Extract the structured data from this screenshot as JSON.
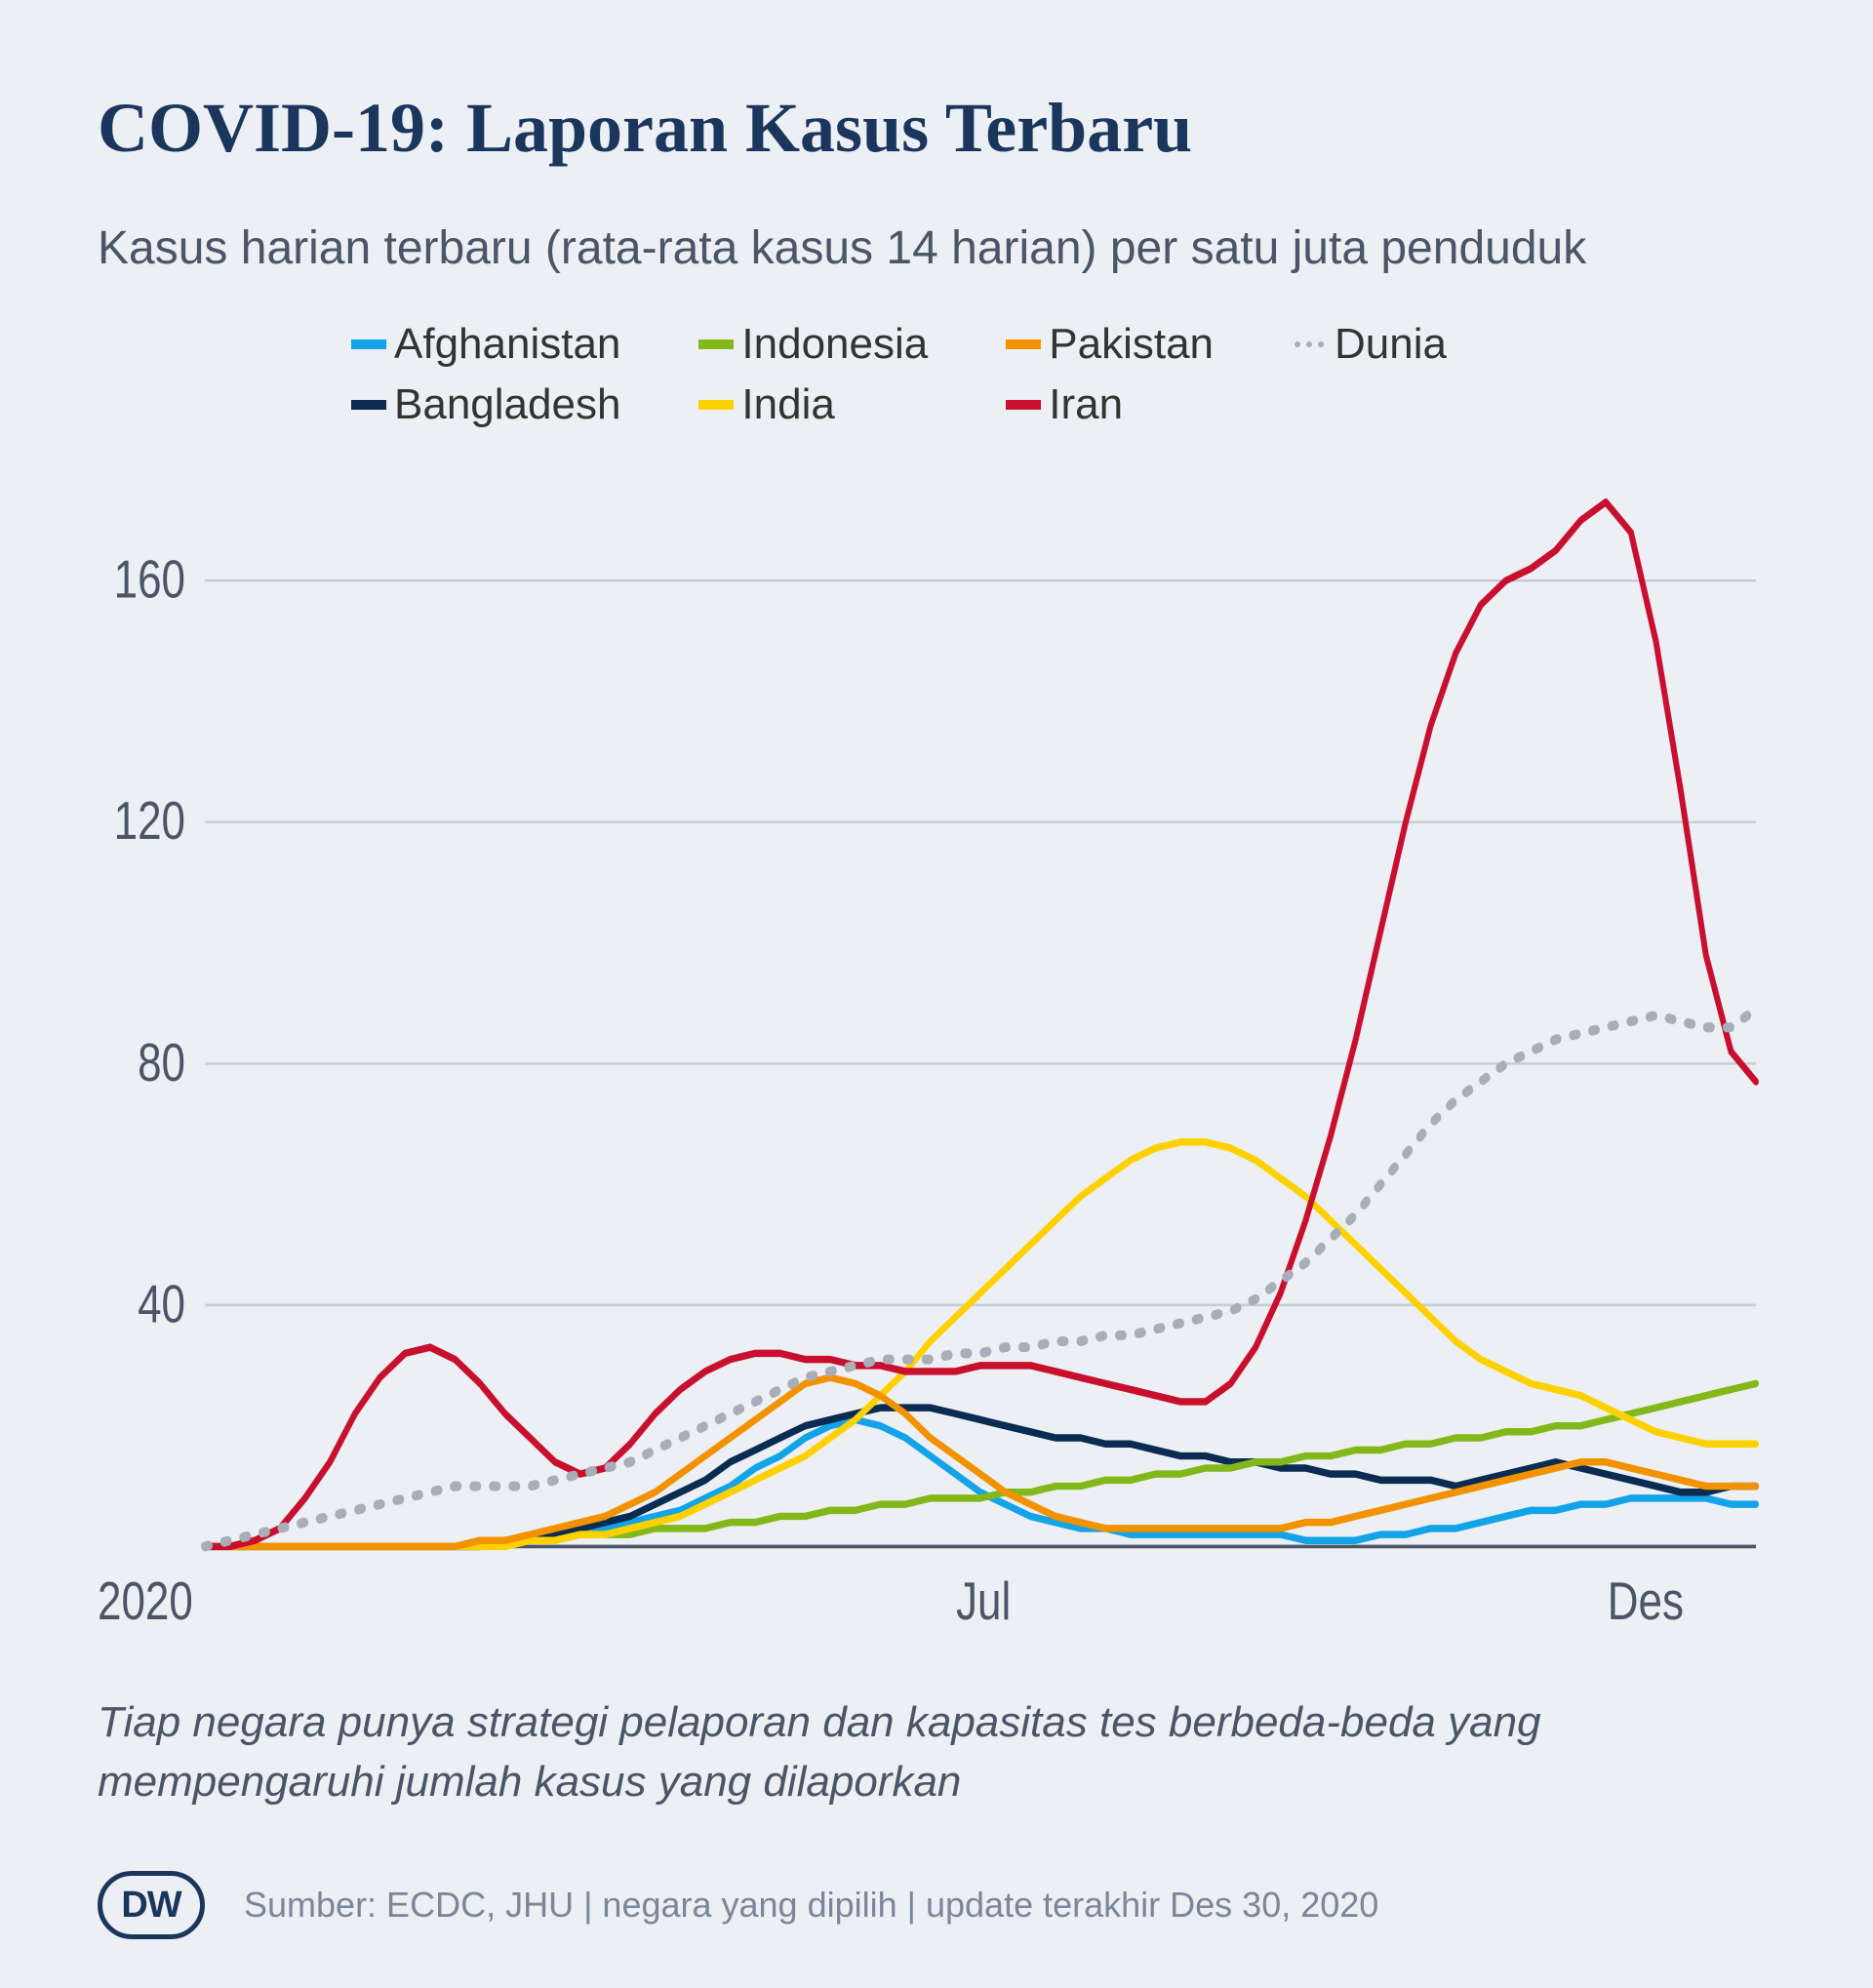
{
  "title": "COVID-19: Laporan Kasus Terbaru",
  "subtitle": "Kasus harian terbaru (rata-rata kasus 14 harian) per satu juta penduduk",
  "footnote": "Tiap negara punya strategi pelaporan dan kapasitas tes berbeda-beda yang mempengaruhi jumlah kasus yang dilaporkan",
  "source": "Sumber: ECDC, JHU | negara yang dipilih | update terakhir Des 30, 2020",
  "logo_text": "DW",
  "chart": {
    "type": "line",
    "background": "#eceff3",
    "grid_color": "#c8ccd3",
    "axis_color": "#4a5568",
    "ylim": [
      0,
      175
    ],
    "yticks": [
      40,
      80,
      120,
      160
    ],
    "x_start_label": "2020",
    "xticks": [
      {
        "pos": 0.5,
        "label": "Jul"
      },
      {
        "pos": 0.92,
        "label": "Des"
      }
    ],
    "line_width": 6,
    "dotted_width": 8,
    "series": [
      {
        "name": "Afghanistan",
        "color": "#13a3e8",
        "style": "solid",
        "data": [
          0,
          0,
          0,
          0,
          0,
          0,
          0,
          0,
          0,
          0,
          0,
          0,
          1,
          1,
          2,
          2,
          3,
          4,
          5,
          6,
          8,
          10,
          13,
          15,
          18,
          20,
          21,
          20,
          18,
          15,
          12,
          9,
          7,
          5,
          4,
          3,
          3,
          2,
          2,
          2,
          2,
          2,
          2,
          2,
          1,
          1,
          1,
          2,
          2,
          3,
          3,
          4,
          5,
          6,
          6,
          7,
          7,
          8,
          8,
          8,
          8,
          7,
          7
        ]
      },
      {
        "name": "Bangladesh",
        "color": "#0a2b52",
        "style": "solid",
        "data": [
          0,
          0,
          0,
          0,
          0,
          0,
          0,
          0,
          0,
          0,
          0,
          0,
          1,
          1,
          2,
          3,
          4,
          5,
          7,
          9,
          11,
          14,
          16,
          18,
          20,
          21,
          22,
          23,
          23,
          23,
          22,
          21,
          20,
          19,
          18,
          18,
          17,
          17,
          16,
          15,
          15,
          14,
          14,
          13,
          13,
          12,
          12,
          11,
          11,
          11,
          10,
          11,
          12,
          13,
          14,
          13,
          12,
          11,
          10,
          9,
          9,
          10,
          10
        ]
      },
      {
        "name": "Indonesia",
        "color": "#83b81a",
        "style": "solid",
        "data": [
          0,
          0,
          0,
          0,
          0,
          0,
          0,
          0,
          0,
          0,
          0,
          1,
          1,
          1,
          1,
          2,
          2,
          2,
          3,
          3,
          3,
          4,
          4,
          5,
          5,
          6,
          6,
          7,
          7,
          8,
          8,
          8,
          9,
          9,
          10,
          10,
          11,
          11,
          12,
          12,
          13,
          13,
          14,
          14,
          15,
          15,
          16,
          16,
          17,
          17,
          18,
          18,
          19,
          19,
          20,
          20,
          21,
          22,
          23,
          24,
          25,
          26,
          27
        ]
      },
      {
        "name": "India",
        "color": "#fdd100",
        "style": "solid",
        "data": [
          0,
          0,
          0,
          0,
          0,
          0,
          0,
          0,
          0,
          0,
          0,
          0,
          0,
          1,
          1,
          2,
          2,
          3,
          4,
          5,
          7,
          9,
          11,
          13,
          15,
          18,
          21,
          25,
          29,
          34,
          38,
          42,
          46,
          50,
          54,
          58,
          61,
          64,
          66,
          67,
          67,
          66,
          64,
          61,
          58,
          54,
          50,
          46,
          42,
          38,
          34,
          31,
          29,
          27,
          26,
          25,
          23,
          21,
          19,
          18,
          17,
          17,
          17
        ]
      },
      {
        "name": "Pakistan",
        "color": "#f39200",
        "style": "solid",
        "data": [
          0,
          0,
          0,
          0,
          0,
          0,
          0,
          0,
          0,
          0,
          0,
          1,
          1,
          2,
          3,
          4,
          5,
          7,
          9,
          12,
          15,
          18,
          21,
          24,
          27,
          28,
          27,
          25,
          22,
          18,
          15,
          12,
          9,
          7,
          5,
          4,
          3,
          3,
          3,
          3,
          3,
          3,
          3,
          3,
          4,
          4,
          5,
          6,
          7,
          8,
          9,
          10,
          11,
          12,
          13,
          14,
          14,
          13,
          12,
          11,
          10,
          10,
          10
        ]
      },
      {
        "name": "Iran",
        "color": "#c8102e",
        "style": "solid",
        "data": [
          0,
          0,
          1,
          3,
          8,
          14,
          22,
          28,
          32,
          33,
          31,
          27,
          22,
          18,
          14,
          12,
          13,
          17,
          22,
          26,
          29,
          31,
          32,
          32,
          31,
          31,
          30,
          30,
          29,
          29,
          29,
          30,
          30,
          30,
          29,
          28,
          27,
          26,
          25,
          24,
          24,
          27,
          33,
          42,
          54,
          68,
          84,
          102,
          120,
          136,
          148,
          156,
          160,
          162,
          165,
          170,
          173,
          168,
          150,
          125,
          98,
          82,
          77
        ]
      },
      {
        "name": "Dunia",
        "color": "#a8aeb8",
        "style": "dotted",
        "data": [
          0,
          1,
          2,
          3,
          4,
          5,
          6,
          7,
          8,
          9,
          10,
          10,
          10,
          10,
          11,
          12,
          13,
          14,
          16,
          18,
          20,
          22,
          24,
          26,
          28,
          29,
          30,
          31,
          31,
          31,
          32,
          32,
          33,
          33,
          34,
          34,
          35,
          35,
          36,
          37,
          38,
          39,
          41,
          44,
          47,
          51,
          55,
          60,
          65,
          70,
          74,
          77,
          80,
          82,
          84,
          85,
          86,
          87,
          88,
          87,
          86,
          86,
          89
        ]
      }
    ]
  }
}
